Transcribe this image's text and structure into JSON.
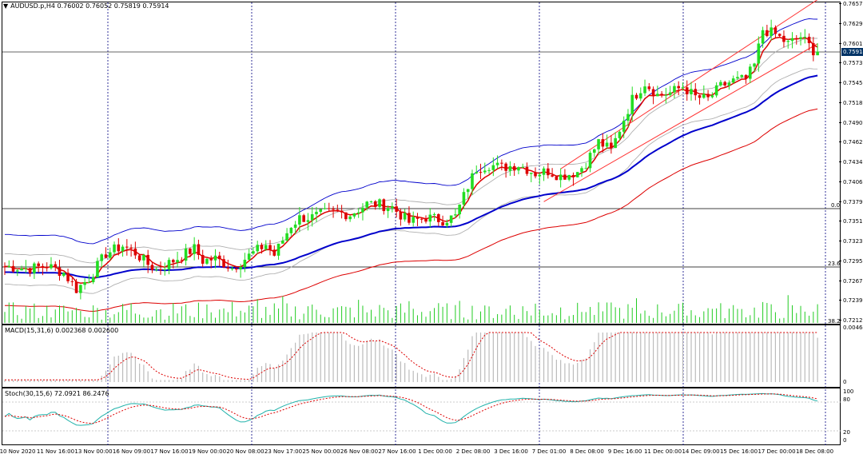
{
  "header": {
    "menu_icon": "triangle-down-icon",
    "symbol_line": "AUDUSD.p,H4  0.76002 0.76052 0.75819 0.75914"
  },
  "price_axis": {
    "ticks": [
      "0.76570",
      "0.76290",
      "0.76015",
      "0.75735",
      "0.75455",
      "0.75180",
      "0.74900",
      "0.74620",
      "0.74345",
      "0.74065",
      "0.73790",
      "0.73510",
      "0.73230",
      "0.72955",
      "0.72675",
      "0.72395",
      "0.72120"
    ],
    "current_price": "0.75914"
  },
  "fib_labels": {
    "f0": "0.0",
    "f236": "23.6",
    "f382": "38.2"
  },
  "macd": {
    "label": "MACD(15,31,6) 0.002368 0.002600",
    "scale_top": "0.004641",
    "scale_zero": "0"
  },
  "stoch": {
    "label": "Stoch(30,15,6) 72.0921 86.2476",
    "levels": [
      "100",
      "80",
      "20",
      "0"
    ]
  },
  "time_axis": {
    "labels": [
      "10 Nov 2020",
      "11 Nov 16:00",
      "13 Nov 00:00",
      "16 Nov 09:00",
      "17 Nov 16:00",
      "19 Nov 00:00",
      "20 Nov 08:00",
      "23 Nov 17:00",
      "25 Nov 00:00",
      "26 Nov 08:00",
      "27 Nov 16:00",
      "1 Dec 00:00",
      "2 Dec 08:00",
      "3 Dec 16:00",
      "7 Dec 01:00",
      "8 Dec 08:00",
      "9 Dec 16:00",
      "11 Dec 00:00",
      "14 Dec 09:00",
      "15 Dec 16:00",
      "17 Dec 00:00",
      "18 Dec 08:00"
    ]
  },
  "colors": {
    "bull": "#22dd22",
    "bear": "#dd0000",
    "ema_fast": "#dd0000",
    "ema_slow": "#0000cc",
    "band_outer": "#0000cc",
    "band_inner": "#b0b0b0",
    "lower_band": "#dd0000",
    "channel": "#ff3333",
    "volume": "#22cc22",
    "grid": "#000080"
  },
  "chart_data": [
    {
      "type": "candlestick",
      "symbol": "AUDUSD.p",
      "timeframe": "H4",
      "ohlc_last": {
        "open": 0.76002,
        "high": 0.76052,
        "low": 0.75819,
        "close": 0.75914
      },
      "ylim": [
        0.7212,
        0.7657
      ],
      "x_labels": [
        "10 Nov 2020",
        "11 Nov 16:00",
        "13 Nov 00:00",
        "16 Nov 09:00",
        "17 Nov 16:00",
        "19 Nov 00:00",
        "20 Nov 08:00",
        "23 Nov 17:00",
        "25 Nov 00:00",
        "26 Nov 08:00",
        "27 Nov 16:00",
        "1 Dec 00:00",
        "2 Dec 08:00",
        "3 Dec 16:00",
        "7 Dec 01:00",
        "8 Dec 08:00",
        "9 Dec 16:00",
        "11 Dec 00:00",
        "14 Dec 09:00",
        "15 Dec 16:00",
        "17 Dec 00:00",
        "18 Dec 08:00"
      ],
      "close_path": [
        [
          0,
          0.7287
        ],
        [
          6,
          0.7284
        ],
        [
          10,
          0.7288
        ],
        [
          14,
          0.7278
        ],
        [
          17,
          0.7255
        ],
        [
          20,
          0.727
        ],
        [
          24,
          0.7305
        ],
        [
          28,
          0.7316
        ],
        [
          31,
          0.7306
        ],
        [
          34,
          0.729
        ],
        [
          36,
          0.7282
        ],
        [
          40,
          0.7295
        ],
        [
          45,
          0.7312
        ],
        [
          47,
          0.7295
        ],
        [
          50,
          0.7298
        ],
        [
          54,
          0.7285
        ],
        [
          58,
          0.7302
        ],
        [
          62,
          0.7318
        ],
        [
          64,
          0.7303
        ],
        [
          68,
          0.7345
        ],
        [
          70,
          0.7355
        ],
        [
          73,
          0.7356
        ],
        [
          76,
          0.7362
        ],
        [
          79,
          0.7363
        ],
        [
          82,
          0.736
        ],
        [
          86,
          0.7375
        ],
        [
          89,
          0.7374
        ],
        [
          92,
          0.737
        ],
        [
          96,
          0.7349
        ],
        [
          100,
          0.7356
        ],
        [
          104,
          0.7352
        ],
        [
          107,
          0.7357
        ],
        [
          110,
          0.74
        ],
        [
          112,
          0.7425
        ],
        [
          115,
          0.743
        ],
        [
          118,
          0.7426
        ],
        [
          122,
          0.743
        ],
        [
          126,
          0.7418
        ],
        [
          129,
          0.7421
        ],
        [
          132,
          0.7414
        ],
        [
          136,
          0.742
        ],
        [
          138,
          0.7433
        ],
        [
          141,
          0.7462
        ],
        [
          144,
          0.745
        ],
        [
          146,
          0.748
        ],
        [
          149,
          0.7522
        ],
        [
          152,
          0.7545
        ],
        [
          155,
          0.7528
        ],
        [
          158,
          0.7531
        ],
        [
          161,
          0.754
        ],
        [
          164,
          0.7525
        ],
        [
          167,
          0.7522
        ],
        [
          170,
          0.754
        ],
        [
          173,
          0.7548
        ],
        [
          176,
          0.755
        ],
        [
          178,
          0.757
        ],
        [
          180,
          0.762
        ],
        [
          183,
          0.7613
        ],
        [
          186,
          0.76
        ],
        [
          189,
          0.761
        ],
        [
          192,
          0.7591
        ]
      ],
      "indicators": [
        "EMA fast (red)",
        "EMA slow (blue)",
        "Bollinger-style envelopes",
        "Regression channel",
        "Volume",
        "Fibonacci levels 0.0 / 23.6 / 38.2"
      ]
    },
    {
      "type": "histogram",
      "name": "MACD(15,31,6)",
      "values": {
        "macd": 0.002368,
        "signal": 0.0026
      },
      "ylim": [
        0,
        0.004641
      ]
    },
    {
      "type": "line",
      "name": "Stoch(30,15,6)",
      "values": {
        "main": 72.0921,
        "signal": 86.2476
      },
      "ylim": [
        0,
        100
      ],
      "levels": [
        20,
        80
      ]
    }
  ]
}
